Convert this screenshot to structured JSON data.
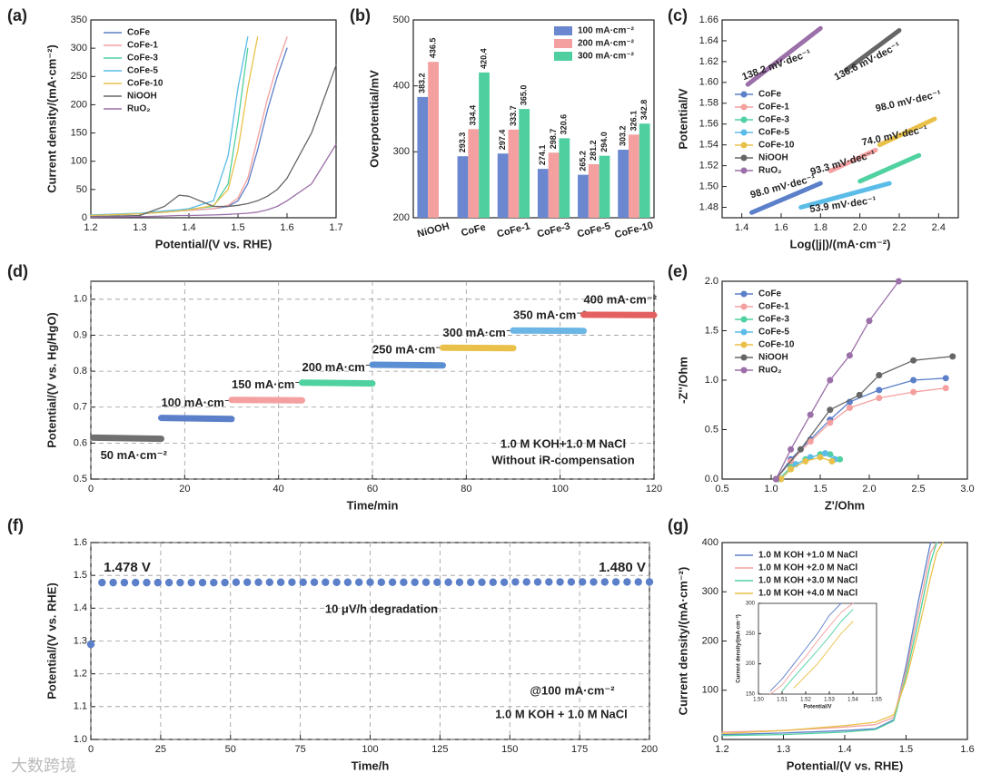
{
  "chart_data": [
    {
      "label": "(a)",
      "type": "line",
      "xlabel": "Potential/(V vs. RHE)",
      "ylabel": "Current density/(mA·cm⁻²)",
      "xlim": [
        1.2,
        1.7
      ],
      "xticks": [
        1.2,
        1.3,
        1.4,
        1.5,
        1.6,
        1.7
      ],
      "ylim": [
        0,
        350
      ],
      "yticks": [
        0,
        50,
        100,
        150,
        200,
        250,
        300,
        350
      ],
      "legend": "upper left",
      "x": [
        1.2,
        1.3,
        1.35,
        1.38,
        1.4,
        1.45,
        1.48,
        1.5,
        1.52,
        1.54,
        1.56,
        1.58,
        1.6,
        1.65,
        1.7
      ],
      "series": [
        {
          "name": "CoFe",
          "color": "#5b7fc9",
          "values": [
            4,
            7,
            10,
            12,
            13,
            16,
            20,
            30,
            60,
            120,
            190,
            250,
            300,
            null,
            null
          ]
        },
        {
          "name": "CoFe-1",
          "color": "#f4a0a0",
          "values": [
            4,
            7,
            10,
            12,
            13,
            16,
            22,
            35,
            70,
            140,
            210,
            270,
            320,
            null,
            null
          ]
        },
        {
          "name": "CoFe-3",
          "color": "#4fd1a0",
          "values": [
            4,
            7,
            11,
            13,
            15,
            20,
            60,
            170,
            300,
            null,
            null,
            null,
            null,
            null,
            null
          ]
        },
        {
          "name": "CoFe-5",
          "color": "#5bbce8",
          "values": [
            5,
            8,
            12,
            14,
            16,
            30,
            110,
            230,
            320,
            null,
            null,
            null,
            null,
            null,
            null
          ]
        },
        {
          "name": "CoFe-10",
          "color": "#e9c14a",
          "values": [
            4,
            7,
            10,
            12,
            14,
            22,
            50,
            120,
            230,
            320,
            null,
            null,
            null,
            null,
            null
          ]
        },
        {
          "name": "NiOOH",
          "color": "#666666",
          "values": [
            2,
            4,
            20,
            40,
            38,
            20,
            20,
            22,
            25,
            30,
            38,
            50,
            70,
            150,
            270
          ]
        },
        {
          "name": "RuO₂",
          "color": "#9b6fa8",
          "values": [
            1,
            2,
            3,
            4,
            4,
            5,
            6,
            7,
            8,
            10,
            14,
            20,
            30,
            60,
            130
          ]
        }
      ]
    },
    {
      "label": "(b)",
      "type": "bar",
      "ylabel": "Overpotential/mV",
      "ylim": [
        200,
        500
      ],
      "yticks": [
        200,
        300,
        400,
        500
      ],
      "legend": "upper right",
      "categories": [
        "NiOOH",
        "CoFe",
        "CoFe-1",
        "CoFe-3",
        "CoFe-5",
        "CoFe-10"
      ],
      "series": [
        {
          "name": "100 mA·cm⁻²",
          "color": "#6a87d0",
          "values": [
            383.2,
            293.3,
            297.4,
            274.1,
            265.2,
            303.2
          ],
          "value_labels": [
            "383.2",
            "293.3",
            "297.4",
            "274.1",
            "265.2",
            "303.2"
          ]
        },
        {
          "name": "200 mA·cm⁻²",
          "color": "#f4a0a0",
          "values": [
            436.5,
            334.4,
            333.7,
            298.7,
            281.2,
            326.1
          ],
          "value_labels": [
            "436.5",
            "334.4",
            "333.7",
            "298.7",
            "281.2",
            "326.1"
          ]
        },
        {
          "name": "300 mA·cm⁻²",
          "color": "#4fcf9f",
          "values": [
            null,
            420.4,
            365,
            320.6,
            294,
            342.8
          ],
          "value_labels": [
            null,
            "420.4",
            "365.0",
            "320.6",
            "294.0",
            "342.8"
          ]
        }
      ]
    },
    {
      "label": "(c)",
      "type": "line",
      "xlabel": "Log(|j|)/(mA·cm⁻²)",
      "ylabel": "Potential/V",
      "line_width": 5,
      "xlim": [
        1.3,
        2.5
      ],
      "xticks": [
        1.4,
        1.6,
        1.8,
        {
          "value": 2,
          "label": "2.0"
        },
        2.2,
        2.4
      ],
      "ylim": [
        1.47,
        1.66
      ],
      "yticks": [
        1.48,
        {
          "value": 1.5,
          "label": "1.50"
        },
        1.52,
        1.54,
        1.56,
        1.58,
        {
          "value": 1.6,
          "label": "1.60"
        },
        1.62,
        1.64,
        1.66
      ],
      "legend": "center left",
      "series": [
        {
          "name": "CoFe",
          "color": "#5b7fc9",
          "x": [
            1.45,
            1.8
          ],
          "values": [
            1.475,
            1.503
          ]
        },
        {
          "name": "CoFe-1",
          "color": "#f4a0a0",
          "x": [
            1.85,
            2.08
          ],
          "values": [
            1.515,
            1.535
          ]
        },
        {
          "name": "CoFe-3",
          "color": "#4fd1a0",
          "x": [
            2.0,
            2.3
          ],
          "values": [
            1.505,
            1.53
          ]
        },
        {
          "name": "CoFe-5",
          "color": "#5bbce8",
          "x": [
            1.7,
            2.15
          ],
          "values": [
            1.48,
            1.503
          ]
        },
        {
          "name": "CoFe-10",
          "color": "#e9c14a",
          "x": [
            2.1,
            2.38
          ],
          "values": [
            1.54,
            1.565
          ]
        },
        {
          "name": "NiOOH",
          "color": "#666666",
          "x": [
            1.93,
            2.2
          ],
          "values": [
            1.612,
            1.65
          ]
        },
        {
          "name": "RuO₂",
          "color": "#9b6fa8",
          "x": [
            1.43,
            1.8
          ],
          "values": [
            1.598,
            1.652
          ]
        }
      ],
      "annotations": [
        {
          "text": "138.2 mV·dec⁻¹",
          "color": "#9b6fa8"
        },
        {
          "text": "136.6 mV·dec⁻¹",
          "color": "#666666"
        },
        {
          "text": "93.3 mV·dec⁻¹",
          "color": "#f4a0a0"
        },
        {
          "text": "98.0 mV·dec⁻¹",
          "color": "#e9c14a"
        },
        {
          "text": "74.0 mV·dec⁻¹",
          "color": "#4fd1a0"
        },
        {
          "text": "98.0 mV·dec⁻¹",
          "color": "#5b7fc9"
        },
        {
          "text": "53.9 mV·dec⁻¹",
          "color": "#5bbce8"
        }
      ]
    },
    {
      "label": "(d)",
      "type": "line",
      "xlabel": "Time/min",
      "ylabel": "Potential/(V vs. Hg/HgO)",
      "line_width": 7,
      "grid": true,
      "series_labels": true,
      "xlim": [
        0,
        120
      ],
      "xticks": [
        0,
        20,
        40,
        60,
        80,
        100,
        120
      ],
      "ylim": [
        0.5,
        1.05
      ],
      "yticks": [
        0.5,
        0.6,
        0.7,
        0.8,
        0.9,
        {
          "value": 1,
          "label": "1.0"
        }
      ],
      "series": [
        {
          "name": "50 mA·cm⁻²",
          "color": "#707070",
          "x": [
            0.5,
            15
          ],
          "values": [
            0.615,
            0.612
          ]
        },
        {
          "name": "100 mA·cm⁻²",
          "color": "#5b7fc9",
          "x": [
            15,
            30
          ],
          "values": [
            0.67,
            0.667
          ]
        },
        {
          "name": "150 mA·cm⁻²",
          "color": "#f4a0a0",
          "x": [
            30,
            45
          ],
          "values": [
            0.72,
            0.719
          ]
        },
        {
          "name": "200 mA·cm⁻²",
          "color": "#4fd1a0",
          "x": [
            45,
            60
          ],
          "values": [
            0.768,
            0.766
          ]
        },
        {
          "name": "250 mA·cm⁻²",
          "color": "#5b8fd4",
          "x": [
            60,
            75
          ],
          "values": [
            0.818,
            0.816
          ]
        },
        {
          "name": "300 mA·cm⁻²",
          "color": "#e9c14a",
          "x": [
            75,
            90
          ],
          "values": [
            0.865,
            0.864
          ]
        },
        {
          "name": "350 mA·cm⁻²",
          "color": "#6cb6e6",
          "x": [
            90,
            105
          ],
          "values": [
            0.913,
            0.912
          ]
        },
        {
          "name": "400 mA·cm⁻²",
          "color": "#e46060",
          "x": [
            105,
            120
          ],
          "values": [
            0.957,
            0.956
          ]
        }
      ],
      "annotations": [
        {
          "text": "1.0 M KOH+1.0 M NaCl",
          "color": "#222"
        },
        {
          "text": "Without iR-compensation",
          "color": "#222"
        }
      ]
    },
    {
      "label": "(e)",
      "type": "line",
      "xlabel": "Z'/Ohm",
      "ylabel": "-Z''/Ohm",
      "markers": true,
      "legend": "upper left",
      "xlim": [
        0.5,
        3.0
      ],
      "xticks": [
        0.5,
        {
          "value": 1,
          "label": "1.0"
        },
        1.5,
        {
          "value": 2,
          "label": "2.0"
        },
        2.5,
        {
          "value": 3,
          "label": "3.0"
        }
      ],
      "ylim": [
        0,
        2.0
      ],
      "yticks": [
        {
          "value": 0,
          "label": "0.0"
        },
        0.5,
        {
          "value": 1,
          "label": "1.0"
        },
        1.5,
        {
          "value": 2,
          "label": "2.0"
        }
      ],
      "series": [
        {
          "name": "CoFe",
          "color": "#5b7fc9",
          "x": [
            1.05,
            1.2,
            1.4,
            1.6,
            1.8,
            2.1,
            2.45,
            2.78
          ],
          "values": [
            0,
            0.2,
            0.4,
            0.6,
            0.78,
            0.9,
            1.0,
            1.02
          ]
        },
        {
          "name": "CoFe-1",
          "color": "#f4a0a0",
          "x": [
            1.05,
            1.2,
            1.4,
            1.6,
            1.8,
            2.1,
            2.45,
            2.78
          ],
          "values": [
            0,
            0.18,
            0.38,
            0.57,
            0.72,
            0.82,
            0.88,
            0.92
          ]
        },
        {
          "name": "CoFe-3",
          "color": "#4fd1a0",
          "x": [
            1.08,
            1.2,
            1.35,
            1.5,
            1.6,
            1.7
          ],
          "values": [
            0,
            0.12,
            0.2,
            0.25,
            0.25,
            0.2
          ]
        },
        {
          "name": "CoFe-5",
          "color": "#5bbce8",
          "x": [
            1.1,
            1.25,
            1.4,
            1.55,
            1.65
          ],
          "values": [
            0,
            0.15,
            0.22,
            0.26,
            0.2
          ]
        },
        {
          "name": "CoFe-10",
          "color": "#e9c14a",
          "x": [
            1.1,
            1.2,
            1.35,
            1.5,
            1.62
          ],
          "values": [
            0,
            0.1,
            0.18,
            0.22,
            0.18
          ]
        },
        {
          "name": "NiOOH",
          "color": "#666666",
          "x": [
            1.05,
            1.3,
            1.6,
            1.9,
            2.1,
            2.45,
            2.85
          ],
          "values": [
            0,
            0.3,
            0.7,
            0.85,
            1.05,
            1.2,
            1.24
          ]
        },
        {
          "name": "RuO₂",
          "color": "#9b6fa8",
          "x": [
            1.05,
            1.2,
            1.4,
            1.6,
            1.8,
            2.0,
            2.3
          ],
          "values": [
            0,
            0.3,
            0.65,
            1.0,
            1.25,
            1.6,
            2.0
          ]
        }
      ]
    },
    {
      "label": "(f)",
      "type": "scatter",
      "xlabel": "Time/h",
      "ylabel": "Potential/(V vs. RHE)",
      "grid": true,
      "color": "#5b7fc9",
      "xlim": [
        0,
        200
      ],
      "xticks": [
        0,
        25,
        50,
        75,
        100,
        125,
        150,
        175,
        200
      ],
      "ylim": [
        1.0,
        1.6
      ],
      "yticks": [
        {
          "value": 1,
          "label": "1.0"
        },
        1.1,
        1.2,
        1.3,
        1.4,
        1.5,
        1.6
      ],
      "x": [
        0,
        4,
        8,
        12,
        16,
        20,
        24,
        28,
        32,
        36,
        40,
        44,
        48,
        52,
        56,
        60,
        64,
        68,
        72,
        76,
        80,
        84,
        88,
        92,
        96,
        100,
        104,
        108,
        112,
        116,
        120,
        124,
        128,
        132,
        136,
        140,
        144,
        148,
        152,
        156,
        160,
        164,
        168,
        172,
        176,
        180,
        184,
        188,
        192,
        196,
        200
      ],
      "values": [
        1.29,
        1.478,
        1.478,
        1.478,
        1.478,
        1.478,
        1.478,
        1.478,
        1.478,
        1.478,
        1.478,
        1.478,
        1.478,
        1.479,
        1.479,
        1.479,
        1.479,
        1.479,
        1.479,
        1.479,
        1.479,
        1.479,
        1.479,
        1.479,
        1.479,
        1.479,
        1.479,
        1.479,
        1.479,
        1.479,
        1.479,
        1.479,
        1.479,
        1.479,
        1.479,
        1.479,
        1.479,
        1.479,
        1.48,
        1.48,
        1.48,
        1.48,
        1.48,
        1.48,
        1.48,
        1.48,
        1.48,
        1.48,
        1.48,
        1.48,
        1.48
      ],
      "annotations": [
        {
          "text": "1.478 V",
          "color": "#f4a0a0"
        },
        {
          "text": "1.480 V",
          "color": "#f4a0a0"
        },
        {
          "text": "10 μV/h degradation",
          "color": "#222"
        },
        {
          "text": "@100 mA·cm⁻²",
          "color": "#222"
        },
        {
          "text": "1.0 M KOH + 1.0 M NaCl",
          "color": "#222"
        }
      ]
    },
    {
      "label": "(g)",
      "type": "line",
      "xlabel": "Potential/(V vs. RHE)",
      "ylabel": "Current density/(mA·cm⁻²)",
      "legend": "upper left",
      "xlim": [
        1.2,
        1.6
      ],
      "xticks": [
        1.2,
        1.3,
        1.4,
        1.5,
        1.6
      ],
      "ylim": [
        0,
        400
      ],
      "yticks": [
        0,
        100,
        200,
        300,
        400
      ],
      "x": [
        1.2,
        1.3,
        1.4,
        1.45,
        1.48,
        1.5,
        1.52,
        1.54,
        1.55,
        1.56
      ],
      "series": [
        {
          "name": "1.0 M KOH +1.0 M NaCl",
          "color": "#5b7fc9",
          "values": [
            10,
            13,
            18,
            22,
            40,
            150,
            280,
            400,
            null,
            null
          ]
        },
        {
          "name": "1.0 M KOH +2.0 M NaCl",
          "color": "#f4a0a0",
          "values": [
            15,
            18,
            25,
            30,
            45,
            140,
            260,
            380,
            400,
            null
          ]
        },
        {
          "name": "1.0 M KOH +3.0 M NaCl",
          "color": "#4fd1a0",
          "values": [
            8,
            10,
            15,
            20,
            38,
            130,
            240,
            360,
            400,
            null
          ]
        },
        {
          "name": "1.0 M KOH +4.0 M NaCl",
          "color": "#e9c14a",
          "values": [
            12,
            18,
            28,
            35,
            50,
            120,
            220,
            330,
            380,
            400
          ]
        }
      ],
      "inset": {
        "type": "line",
        "xlabel": "Potential/V",
        "ylabel": "Current density/(mA·cm⁻²)",
        "xlim": [
          1.5,
          1.55
        ],
        "xticks": [
          {
            "value": 1.5,
            "label": "1.50"
          },
          1.51,
          1.52,
          1.53,
          1.54,
          1.55
        ],
        "ylim": [
          150,
          300
        ],
        "yticks": [
          150,
          200,
          250,
          300
        ],
        "x": [
          1.505,
          1.51,
          1.515,
          1.52,
          1.525,
          1.53,
          1.535,
          1.54
        ],
        "series": [
          {
            "color": "#5b7fc9",
            "values": [
              155,
              175,
              200,
              225,
              250,
              280,
              300,
              null
            ]
          },
          {
            "color": "#f4a0a0",
            "values": [
              150,
              165,
              190,
              212,
              238,
              262,
              285,
              300
            ]
          },
          {
            "color": "#4fd1a0",
            "values": [
              null,
              155,
              178,
              200,
              222,
              245,
              270,
              290
            ]
          },
          {
            "color": "#e9c14a",
            "values": [
              null,
              null,
              160,
              180,
              200,
              225,
              250,
              270
            ]
          }
        ]
      }
    }
  ],
  "watermark": "大数跨境"
}
